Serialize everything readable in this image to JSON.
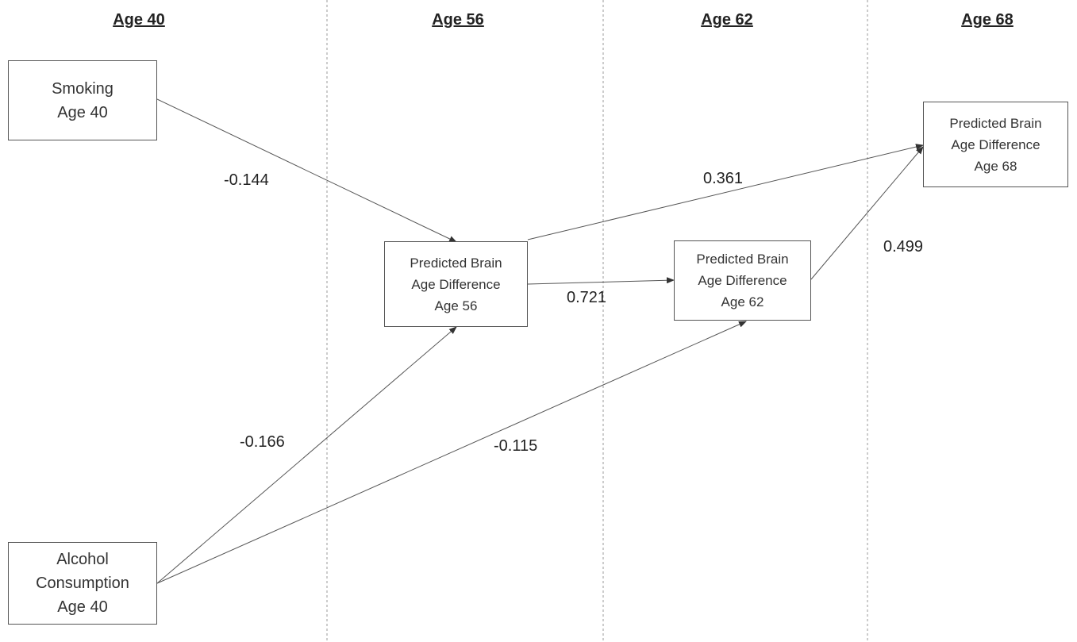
{
  "columns": [
    {
      "id": "age40",
      "label": "Age 40"
    },
    {
      "id": "age56",
      "label": "Age 56"
    },
    {
      "id": "age62",
      "label": "Age 62"
    },
    {
      "id": "age68",
      "label": "Age 68"
    }
  ],
  "nodes": {
    "smoking": {
      "lines": [
        "Smoking",
        "Age 40"
      ]
    },
    "alcohol": {
      "lines": [
        "Alcohol",
        "Consumption",
        "Age 40"
      ]
    },
    "pbad56": {
      "lines": [
        "Predicted Brain",
        "Age Difference",
        "Age 56"
      ]
    },
    "pbad62": {
      "lines": [
        "Predicted Brain",
        "Age Difference",
        "Age 62"
      ]
    },
    "pbad68": {
      "lines": [
        "Predicted Brain",
        "Age Difference",
        "Age 68"
      ]
    }
  },
  "edges": [
    {
      "from": "smoking",
      "to": "pbad56",
      "coefficient": "-0.144"
    },
    {
      "from": "alcohol",
      "to": "pbad56",
      "coefficient": "-0.166"
    },
    {
      "from": "alcohol",
      "to": "pbad62",
      "coefficient": "-0.115"
    },
    {
      "from": "pbad56",
      "to": "pbad62",
      "coefficient": "0.721"
    },
    {
      "from": "pbad56",
      "to": "pbad68",
      "coefficient": "0.361"
    },
    {
      "from": "pbad62",
      "to": "pbad68",
      "coefficient": "0.499"
    }
  ],
  "colors": {
    "line": "#555555",
    "divider": "#9a9a9a",
    "text": "#222222"
  }
}
